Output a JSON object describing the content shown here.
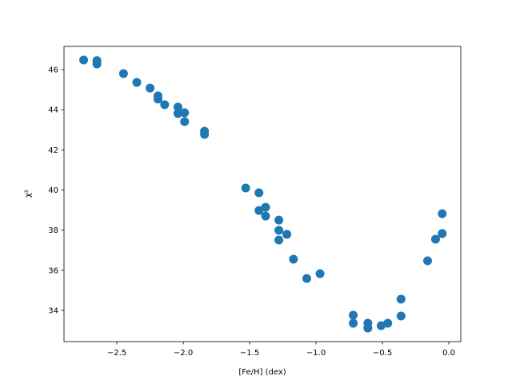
{
  "chart_data": {
    "type": "scatter",
    "x_label": "[Fe/H] (dex)",
    "y_label": "χ²",
    "color": "#1f77b4",
    "xlim": [
      -2.898,
      0.09
    ],
    "ylim": [
      32.445,
      47.156
    ],
    "xticks": [
      {
        "value": -2.5,
        "label": "−2.5"
      },
      {
        "value": -2.0,
        "label": "−2.0"
      },
      {
        "value": -1.5,
        "label": "−1.5"
      },
      {
        "value": -1.0,
        "label": "−1.0"
      },
      {
        "value": -0.5,
        "label": "−0.5"
      },
      {
        "value": 0,
        "label": "0.0"
      }
    ],
    "yticks": [
      34,
      36,
      38,
      40,
      42,
      44,
      46
    ],
    "x": [
      -2.75,
      -2.65,
      -2.65,
      -2.45,
      -2.35,
      -2.25,
      -2.19,
      -2.19,
      -2.14,
      -2.04,
      -2.04,
      -1.99,
      -1.99,
      -1.84,
      -1.84,
      -1.53,
      -1.43,
      -1.43,
      -1.38,
      -1.38,
      -1.28,
      -1.28,
      -1.28,
      -1.22,
      -1.17,
      -1.07,
      -0.97,
      -0.72,
      -0.72,
      -0.61,
      -0.61,
      -0.51,
      -0.46,
      -0.36,
      -0.36,
      -0.16,
      -0.1,
      -0.05,
      -0.05
    ],
    "y": [
      46.48,
      46.45,
      46.28,
      45.8,
      45.36,
      45.08,
      44.69,
      44.53,
      44.25,
      44.13,
      43.81,
      43.85,
      43.41,
      42.93,
      42.77,
      40.1,
      39.86,
      38.98,
      39.14,
      38.7,
      38.5,
      37.99,
      37.51,
      37.79,
      36.55,
      35.59,
      35.83,
      33.76,
      33.36,
      33.36,
      33.12,
      33.24,
      33.36,
      34.56,
      33.72,
      36.47,
      37.55,
      38.82,
      37.83
    ]
  }
}
